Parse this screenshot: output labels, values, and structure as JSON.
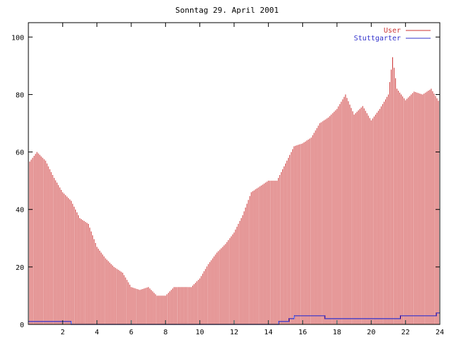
{
  "chart_data": {
    "type": "bar",
    "title": "Sonntag 29. April 2001",
    "xlabel": "",
    "ylabel": "",
    "xlim": [
      0,
      24
    ],
    "ylim": [
      0,
      105
    ],
    "x_ticks": [
      2,
      4,
      6,
      8,
      10,
      12,
      14,
      16,
      18,
      20,
      22,
      24
    ],
    "x_tick_labels": [
      "2",
      "4",
      "6",
      "8",
      "10",
      "12",
      "14",
      "16",
      "18",
      "20",
      "22",
      "24"
    ],
    "y_ticks": [
      0,
      20,
      40,
      60,
      80,
      100
    ],
    "y_tick_labels": [
      "0",
      "20",
      "40",
      "60",
      "80",
      "100"
    ],
    "grid": false,
    "legend_position": "top-right",
    "series": [
      {
        "name": "User",
        "style": "impulses",
        "color": "#cc3333",
        "x": [
          0,
          0.5,
          1,
          1.5,
          2,
          2.5,
          3,
          3.5,
          4,
          4.5,
          5,
          5.5,
          6,
          6.5,
          7,
          7.5,
          8,
          8.5,
          9,
          9.5,
          10,
          10.5,
          11,
          11.5,
          12,
          12.5,
          13,
          13.5,
          14,
          14.5,
          15,
          15.5,
          16,
          16.5,
          17,
          17.5,
          18,
          18.5,
          19,
          19.5,
          20,
          20.5,
          21,
          21.25,
          21.5,
          22,
          22.5,
          23,
          23.5,
          24
        ],
        "values": [
          56,
          60,
          57,
          51,
          46,
          43,
          37,
          35,
          27,
          23,
          20,
          18,
          13,
          12,
          13,
          10,
          10,
          13,
          13,
          13,
          16,
          21,
          25,
          28,
          32,
          38,
          46,
          48,
          50,
          50,
          56,
          62,
          63,
          65,
          70,
          72,
          75,
          80,
          73,
          76,
          71,
          75,
          80,
          93,
          82,
          78,
          81,
          80,
          82,
          77
        ]
      },
      {
        "name": "Stuttgarter",
        "style": "steps",
        "color": "#3333cc",
        "x": [
          0,
          2.5,
          14.6,
          15.2,
          15.5,
          17.3,
          21.7,
          23.8,
          24
        ],
        "values": [
          1,
          0,
          1,
          2,
          3,
          2,
          3,
          4,
          4
        ]
      }
    ]
  }
}
